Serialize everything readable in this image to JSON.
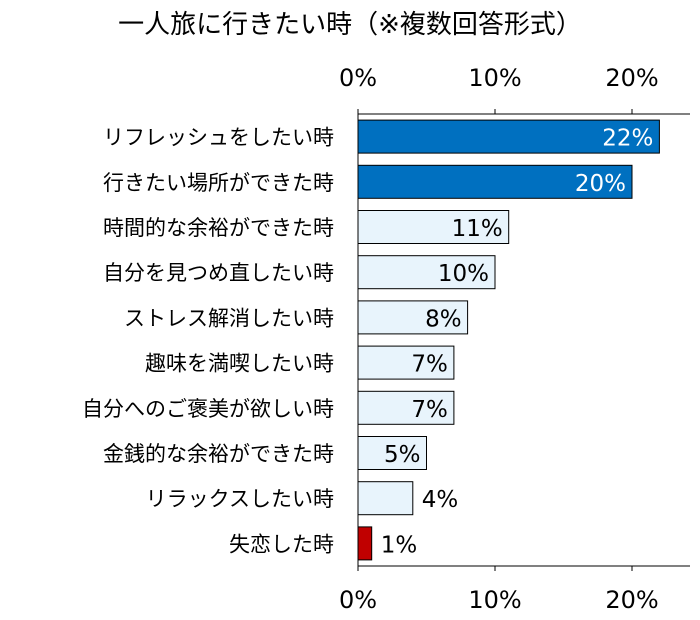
{
  "chart_data": {
    "type": "bar",
    "orientation": "horizontal",
    "title": "一人旅に行きたい時（※複数回答形式）",
    "categories": [
      "リフレッシュをしたい時",
      "行きたい場所ができた時",
      "時間的な余裕ができた時",
      "自分を見つめ直したい時",
      "ストレス解消したい時",
      "趣味を満喫したい時",
      "自分へのご褒美が欲しい時",
      "金銭的な余裕ができた時",
      "リラックスしたい時",
      "失恋した時"
    ],
    "values": [
      22,
      20,
      11,
      10,
      8,
      7,
      7,
      5,
      4,
      1
    ],
    "value_labels": [
      "22%",
      "20%",
      "11%",
      "10%",
      "8%",
      "7%",
      "7%",
      "5%",
      "4%",
      "1%"
    ],
    "bar_colors": [
      "#0070c0",
      "#0070c0",
      "#e8f4fc",
      "#e8f4fc",
      "#e8f4fc",
      "#e8f4fc",
      "#e8f4fc",
      "#e8f4fc",
      "#e8f4fc",
      "#c00000"
    ],
    "label_colors": [
      "#ffffff",
      "#ffffff",
      "#000000",
      "#000000",
      "#000000",
      "#000000",
      "#000000",
      "#000000",
      "#000000",
      "#000000"
    ],
    "xlim": [
      0,
      24
    ],
    "ticks": [
      0,
      10,
      20
    ],
    "tick_labels": [
      "0%",
      "10%",
      "20%"
    ],
    "axis_position": "top and bottom",
    "grid": false
  }
}
